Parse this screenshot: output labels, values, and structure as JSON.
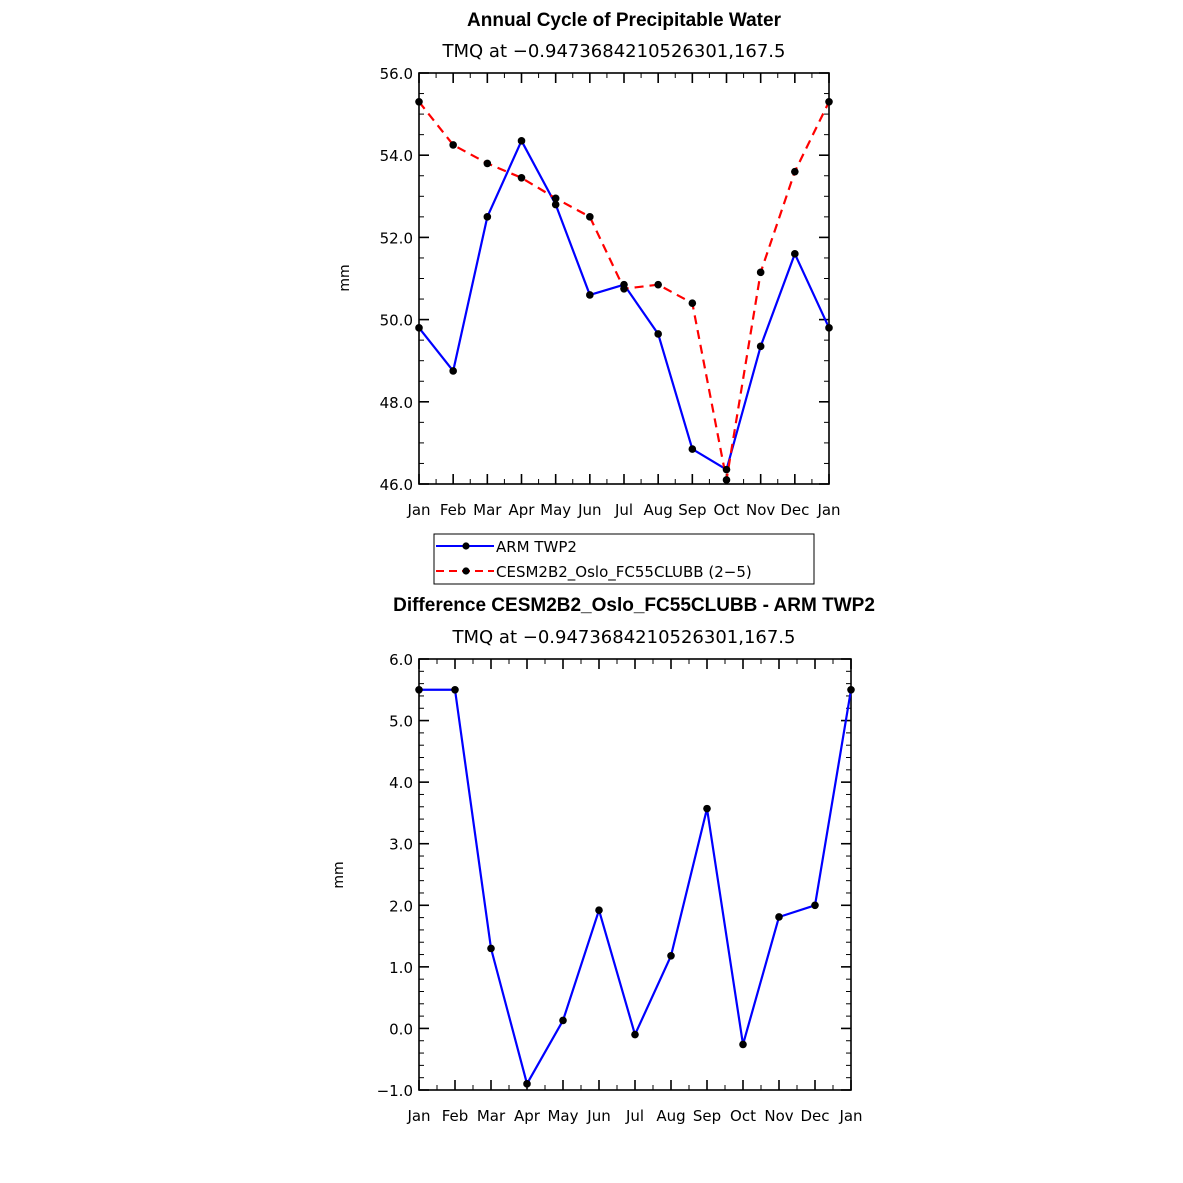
{
  "chart_data": [
    {
      "type": "line",
      "title": "Annual Cycle of Precipitable Water",
      "subtitle": "TMQ at −0.9473684210526301,167.5",
      "ylabel": "mm",
      "categories": [
        "Jan",
        "Feb",
        "Mar",
        "Apr",
        "May",
        "Jun",
        "Jul",
        "Aug",
        "Sep",
        "Oct",
        "Nov",
        "Dec",
        "Jan"
      ],
      "ylim": [
        46.0,
        56.0
      ],
      "yticks": [
        "46.0",
        "48.0",
        "50.0",
        "52.0",
        "54.0",
        "56.0"
      ],
      "series": [
        {
          "name": "ARM TWP2",
          "color": "#0000ff",
          "dash": "solid",
          "values": [
            49.8,
            48.75,
            52.5,
            54.35,
            52.8,
            50.6,
            50.85,
            49.65,
            46.85,
            46.35,
            49.35,
            51.6,
            49.8
          ]
        },
        {
          "name": "CESM2B2_Oslo_FC55CLUBB (2−5)",
          "color": "#ff0000",
          "dash": "dashed",
          "values": [
            55.3,
            54.25,
            53.8,
            53.45,
            52.95,
            52.5,
            50.75,
            50.85,
            50.4,
            46.1,
            51.15,
            53.6,
            55.3
          ]
        }
      ],
      "legend_position": "bottom"
    },
    {
      "type": "line",
      "title": "Difference CESM2B2_Oslo_FC55CLUBB - ARM TWP2",
      "subtitle": "TMQ at −0.9473684210526301,167.5",
      "ylabel": "mm",
      "categories": [
        "Jan",
        "Feb",
        "Mar",
        "Apr",
        "May",
        "Jun",
        "Jul",
        "Aug",
        "Sep",
        "Oct",
        "Nov",
        "Dec",
        "Jan"
      ],
      "ylim": [
        -1.0,
        6.0
      ],
      "yticks": [
        "−1.0",
        "0.0",
        "1.0",
        "2.0",
        "3.0",
        "4.0",
        "5.0",
        "6.0"
      ],
      "series": [
        {
          "name": "",
          "color": "#0000ff",
          "dash": "solid",
          "values": [
            5.5,
            5.5,
            1.3,
            -0.9,
            0.13,
            1.92,
            -0.1,
            1.18,
            3.57,
            -0.26,
            1.81,
            2.0,
            5.5
          ]
        }
      ]
    }
  ]
}
